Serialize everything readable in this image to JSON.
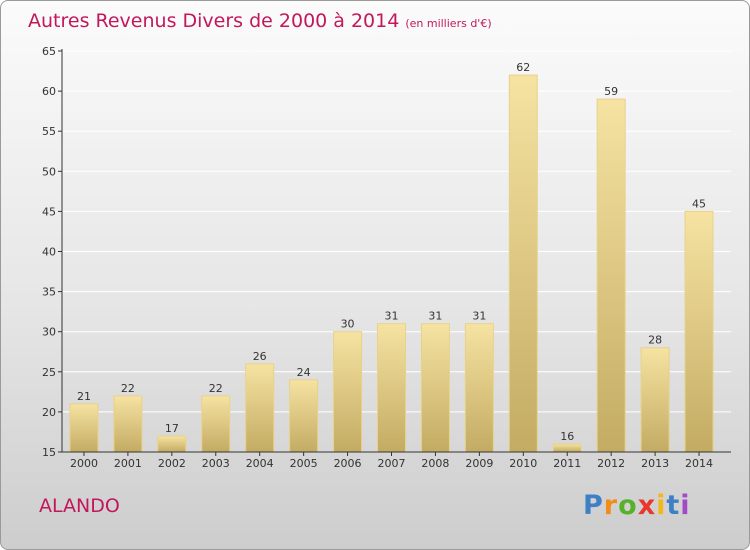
{
  "title": "Autres Revenus Divers de 2000 à 2014",
  "subtitle": "(en milliers d'€)",
  "commune": "ALANDO",
  "logo": {
    "letters": [
      "P",
      "r",
      "o",
      "x",
      "i",
      "t",
      "i"
    ],
    "colors": [
      "#3f7fc6",
      "#f28c1b",
      "#58b02d",
      "#e8372c",
      "#f2b81b",
      "#3f7fc6",
      "#a34bc6"
    ]
  },
  "colors": {
    "title": "#c2185b",
    "bar_light": "#f6e3a2",
    "bar_dark": "#c3ab63",
    "bar_stroke": "#e8d28a",
    "axis": "#333333"
  },
  "chart_data": {
    "type": "bar",
    "title": "Autres Revenus Divers de 2000 à 2014",
    "subtitle": "(en milliers d'€)",
    "categories": [
      "2000",
      "2001",
      "2002",
      "2003",
      "2004",
      "2005",
      "2006",
      "2007",
      "2008",
      "2009",
      "2010",
      "2011",
      "2012",
      "2013",
      "2014"
    ],
    "values": [
      21,
      22,
      17,
      22,
      26,
      24,
      30,
      31,
      31,
      31,
      62,
      16,
      59,
      28,
      45
    ],
    "ylim": [
      15,
      65
    ],
    "yticks": [
      15,
      20,
      25,
      30,
      35,
      40,
      45,
      50,
      55,
      60,
      65
    ],
    "grid": true,
    "data_labels": true
  }
}
